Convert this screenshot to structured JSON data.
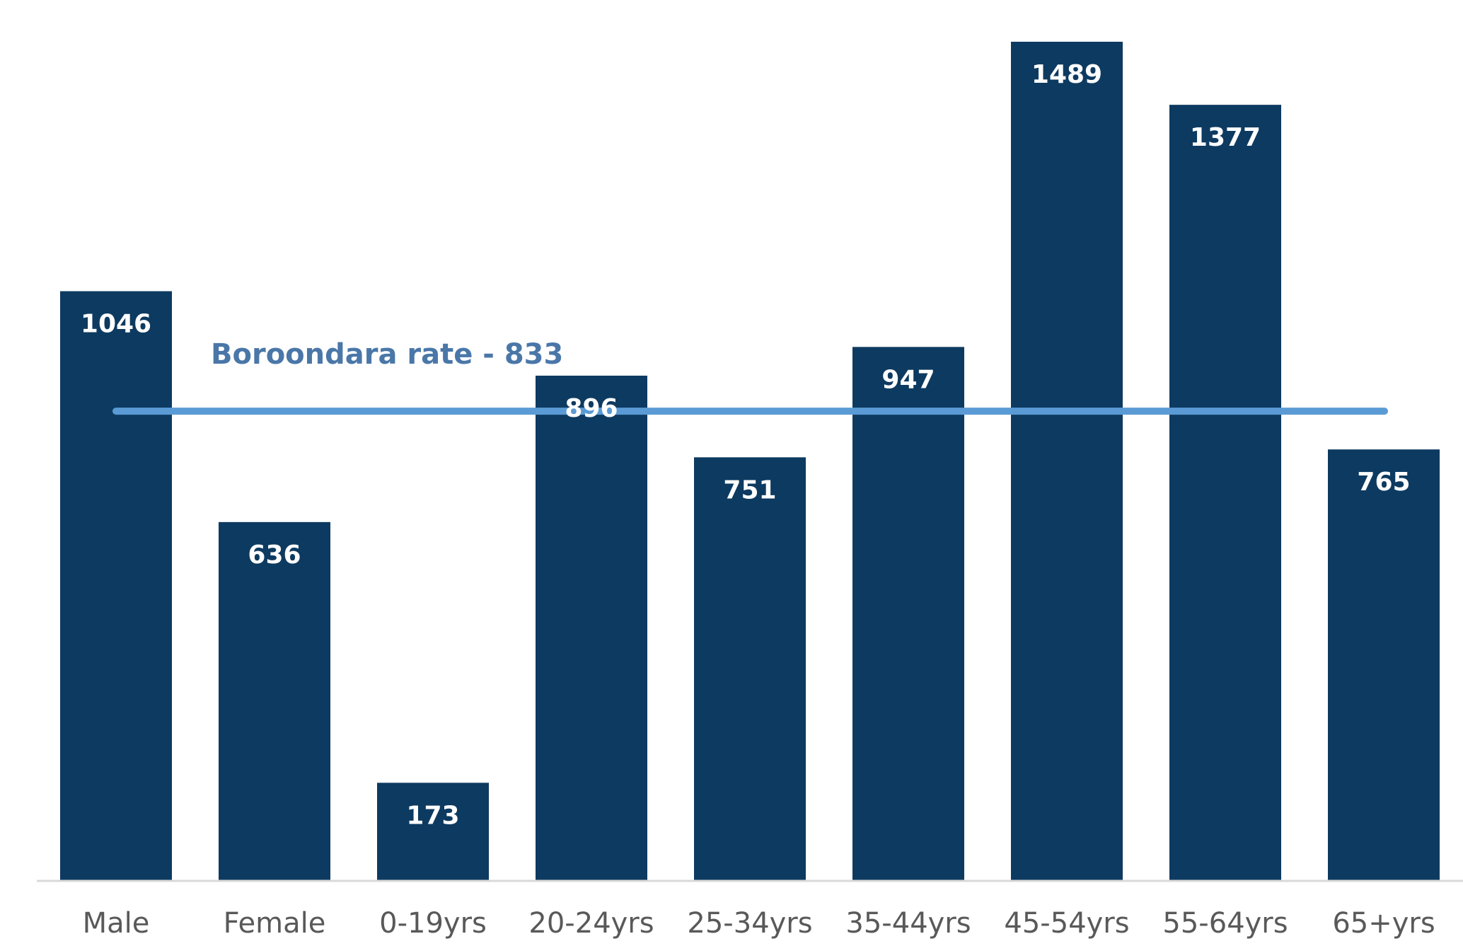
{
  "chart_data": {
    "type": "bar",
    "title": "",
    "xlabel": "",
    "ylabel": "",
    "categories": [
      "Male",
      "Female",
      "0-19yrs",
      "20-24yrs",
      "25-34yrs",
      "35-44yrs",
      "45-54yrs",
      "55-64yrs",
      "65+yrs"
    ],
    "values": [
      1046,
      636,
      173,
      896,
      751,
      947,
      1489,
      1377,
      765
    ],
    "ylim": [
      0,
      1489
    ],
    "grid": false,
    "data_labels": true,
    "reference_line": {
      "label": "Boroondara rate - 833",
      "value": 833
    },
    "colors": {
      "bar": "#0d3a60",
      "reference_line": "#5b9bd5",
      "reference_label": "#4a77a8",
      "axis": "#d9d9d9",
      "tick_label": "#595959",
      "value_label": "#ffffff"
    }
  }
}
